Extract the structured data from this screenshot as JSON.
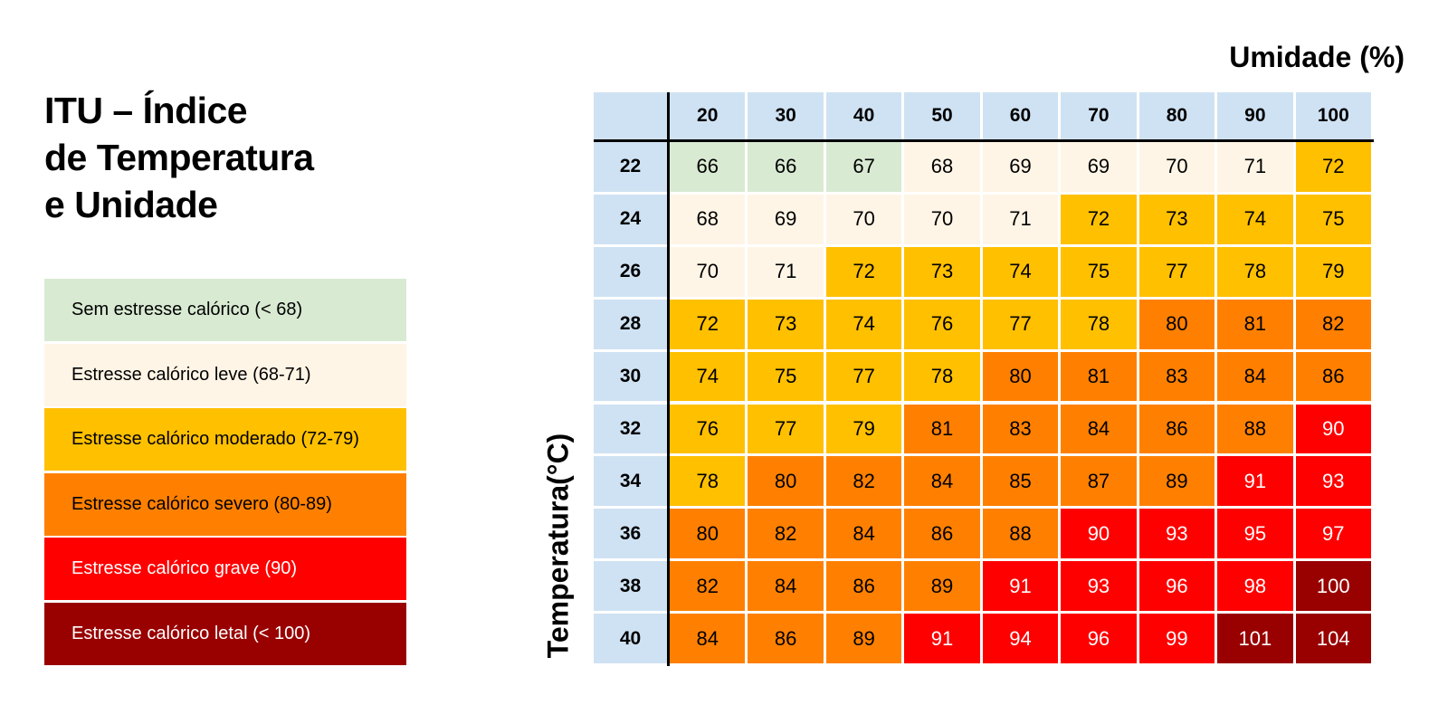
{
  "title_lines": [
    "ITU – Índice",
    "de Temperatura",
    "e Unidade"
  ],
  "colors": {
    "header": "#cfe2f3",
    "sem": "#d9ead3",
    "leve": "#fff5e6",
    "moderado": "#ffc000",
    "severo": "#ff8000",
    "grave": "#ff0000",
    "letal": "#990000"
  },
  "legend": [
    {
      "label": "Sem estresse calórico (< 68)",
      "color": "#d9ead3",
      "text_color": "#000000"
    },
    {
      "label": "Estresse calórico leve (68-71)",
      "color": "#fff5e6",
      "text_color": "#000000"
    },
    {
      "label": "Estresse calórico moderado (72-79)",
      "color": "#ffc000",
      "text_color": "#000000"
    },
    {
      "label": "Estresse calórico severo (80-89)",
      "color": "#ff8000",
      "text_color": "#000000"
    },
    {
      "label": "Estresse calórico grave (90)",
      "color": "#ff0000",
      "text_color": "#ffffff"
    },
    {
      "label": "Estresse calórico letal (< 100)",
      "color": "#990000",
      "text_color": "#ffffff"
    }
  ],
  "chart_data": {
    "type": "heatmap",
    "xlabel": "Umidade (%)",
    "ylabel": "Temperatura(°C)",
    "x": [
      "20",
      "30",
      "40",
      "50",
      "60",
      "70",
      "80",
      "90",
      "100"
    ],
    "y": [
      "22",
      "24",
      "26",
      "28",
      "30",
      "32",
      "34",
      "36",
      "38",
      "40"
    ],
    "values": [
      [
        66,
        66,
        67,
        68,
        69,
        69,
        70,
        71,
        72
      ],
      [
        68,
        69,
        70,
        70,
        71,
        72,
        73,
        74,
        75
      ],
      [
        70,
        71,
        72,
        73,
        74,
        75,
        77,
        78,
        79
      ],
      [
        72,
        73,
        74,
        76,
        77,
        78,
        80,
        81,
        82
      ],
      [
        74,
        75,
        77,
        78,
        80,
        81,
        83,
        84,
        86
      ],
      [
        76,
        77,
        79,
        81,
        83,
        84,
        86,
        88,
        90
      ],
      [
        78,
        80,
        82,
        84,
        85,
        87,
        89,
        91,
        93
      ],
      [
        80,
        82,
        84,
        86,
        88,
        90,
        93,
        95,
        97
      ],
      [
        82,
        84,
        86,
        89,
        91,
        93,
        96,
        98,
        100
      ],
      [
        84,
        86,
        89,
        91,
        94,
        96,
        99,
        101,
        104
      ]
    ],
    "categories": [
      [
        "sem",
        "sem",
        "sem",
        "leve",
        "leve",
        "leve",
        "leve",
        "leve",
        "moderado"
      ],
      [
        "leve",
        "leve",
        "leve",
        "leve",
        "leve",
        "moderado",
        "moderado",
        "moderado",
        "moderado"
      ],
      [
        "leve",
        "leve",
        "moderado",
        "moderado",
        "moderado",
        "moderado",
        "moderado",
        "moderado",
        "moderado"
      ],
      [
        "moderado",
        "moderado",
        "moderado",
        "moderado",
        "moderado",
        "moderado",
        "severo",
        "severo",
        "severo"
      ],
      [
        "moderado",
        "moderado",
        "moderado",
        "moderado",
        "severo",
        "severo",
        "severo",
        "severo",
        "severo"
      ],
      [
        "moderado",
        "moderado",
        "moderado",
        "severo",
        "severo",
        "severo",
        "severo",
        "severo",
        "grave"
      ],
      [
        "moderado",
        "severo",
        "severo",
        "severo",
        "severo",
        "severo",
        "severo",
        "grave",
        "grave"
      ],
      [
        "severo",
        "severo",
        "severo",
        "severo",
        "severo",
        "grave",
        "grave",
        "grave",
        "grave"
      ],
      [
        "severo",
        "severo",
        "severo",
        "severo",
        "grave",
        "grave",
        "grave",
        "grave",
        "letal"
      ],
      [
        "severo",
        "severo",
        "severo",
        "grave",
        "grave",
        "grave",
        "grave",
        "letal",
        "letal"
      ]
    ]
  }
}
